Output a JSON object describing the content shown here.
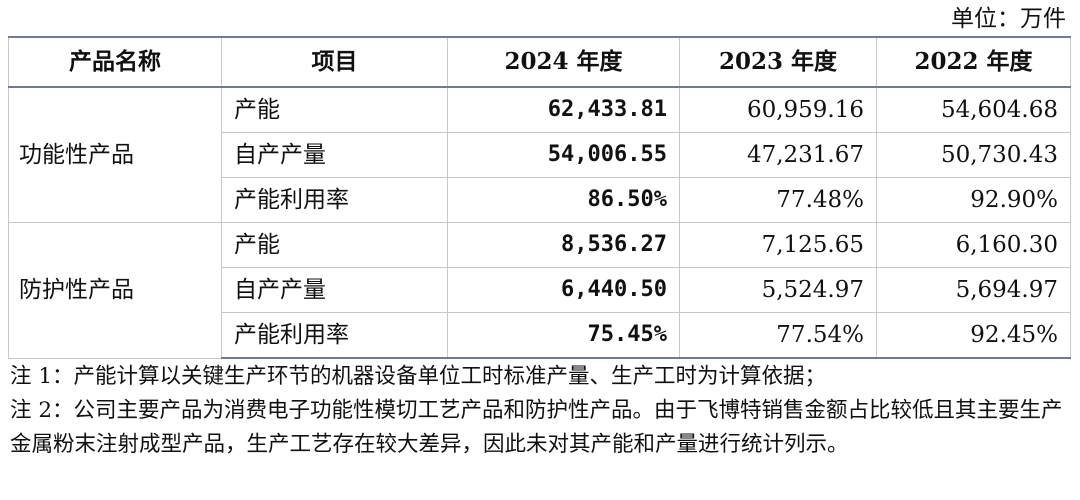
{
  "unit": "单位：万件",
  "table": {
    "headers": [
      "产品名称",
      "项目",
      "2024 年度",
      "2023 年度",
      "2022 年度"
    ],
    "groups": [
      {
        "name": "功能性产品",
        "rows": [
          {
            "item": "产能",
            "y2024": "62,433.81",
            "y2023": "60,959.16",
            "y2022": "54,604.68"
          },
          {
            "item": "自产产量",
            "y2024": "54,006.55",
            "y2023": "47,231.67",
            "y2022": "50,730.43"
          },
          {
            "item": "产能利用率",
            "y2024": "86.50%",
            "y2023": "77.48%",
            "y2022": "92.90%"
          }
        ]
      },
      {
        "name": "防护性产品",
        "rows": [
          {
            "item": "产能",
            "y2024": "8,536.27",
            "y2023": "7,125.65",
            "y2022": "6,160.30"
          },
          {
            "item": "自产产量",
            "y2024": "6,440.50",
            "y2023": "5,524.97",
            "y2022": "5,694.97"
          },
          {
            "item": "产能利用率",
            "y2024": "75.45%",
            "y2023": "77.54%",
            "y2022": "92.45%"
          }
        ]
      }
    ]
  },
  "notes": [
    "注 1：产能计算以关键生产环节的机器设备单位工时标准产量、生产工时为计算依据；",
    "注 2：公司主要产品为消费电子功能性模切工艺产品和防护性产品。由于飞博特销售金额占比较低且其主要生产金属粉末注射成型产品，生产工艺存在较大差异，因此未对其产能和产量进行统计列示。"
  ]
}
